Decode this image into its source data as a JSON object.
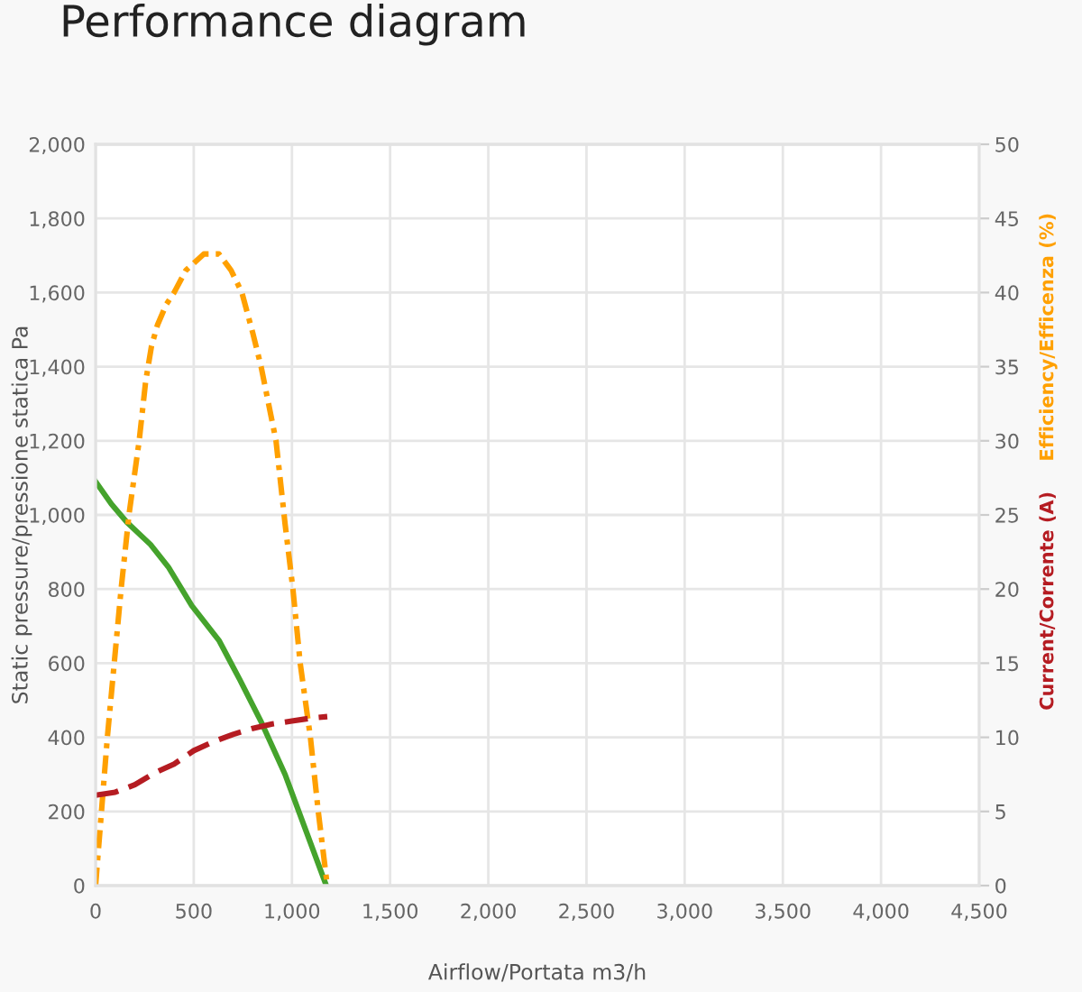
{
  "chart_data": {
    "type": "line",
    "title": "Performance diagram",
    "xlabel": "Airflow/Portata m3/h",
    "ylabel": "Static pressure/pressione statica Pa",
    "y2label": "Efficiency/Efficenza (%)",
    "annotations": [
      "Current/Corrente (A)"
    ],
    "xlim": [
      0,
      4500
    ],
    "xticks": [
      0,
      500,
      {
        "value": 1000,
        "label": "1,000"
      },
      {
        "value": 1500,
        "label": "1,500"
      },
      {
        "value": 2000,
        "label": "2,000"
      },
      {
        "value": 2500,
        "label": "2,500"
      },
      {
        "value": 3000,
        "label": "3,000"
      },
      {
        "value": 3500,
        "label": "3,500"
      },
      {
        "value": 4000,
        "label": "4,000"
      },
      {
        "value": 4500,
        "label": "4,500"
      }
    ],
    "ylim": [
      0,
      2000
    ],
    "yticks": [
      0,
      200,
      400,
      600,
      800,
      {
        "value": 1000,
        "label": "1,000"
      },
      {
        "value": 1200,
        "label": "1,200"
      },
      {
        "value": 1400,
        "label": "1,400"
      },
      {
        "value": 1600,
        "label": "1,600"
      },
      {
        "value": 1800,
        "label": "1,800"
      },
      {
        "value": 2000,
        "label": "2,000"
      }
    ],
    "y2lim": [
      0,
      50
    ],
    "y2ticks": [
      0,
      5,
      10,
      15,
      20,
      25,
      30,
      35,
      40,
      45,
      50
    ],
    "grid": true,
    "series": [
      {
        "color": "#45a32c",
        "line_style": "solid",
        "x": [
          0,
          80,
          160,
          280,
          370,
          490,
          630,
          735,
          845,
          965,
          1070,
          1175
        ],
        "values": [
          1090,
          1030,
          980,
          920,
          860,
          755,
          660,
          555,
          440,
          300,
          150,
          0
        ]
      },
      {
        "color": "#ffa000",
        "axis": "y2",
        "line_style": "dashdot",
        "x": [
          0,
          30,
          60,
          95,
          130,
          170,
          222,
          255,
          285,
          315,
          360,
          400,
          460,
          551,
          628,
          690,
          745,
          800,
          843,
          919,
          965,
          1005,
          1042,
          1094,
          1134,
          1180
        ],
        "values": [
          0,
          5,
          10,
          15,
          20,
          25,
          30,
          34,
          36.4,
          37.8,
          39.2,
          40,
          41.5,
          42.6,
          42.6,
          41.5,
          40,
          37.3,
          35,
          30,
          24.4,
          20,
          15,
          10,
          5,
          0
        ]
      },
      {
        "color": "#b51c22",
        "axis": "y2",
        "line_style": "dashed",
        "x": [
          0,
          100,
          200,
          300,
          400,
          500,
          600,
          700,
          800,
          900,
          1000,
          1100,
          1180
        ],
        "values": [
          6.1,
          6.3,
          6.8,
          7.6,
          8.2,
          9.1,
          9.7,
          10.2,
          10.6,
          10.9,
          11.1,
          11.3,
          11.4
        ]
      }
    ]
  }
}
